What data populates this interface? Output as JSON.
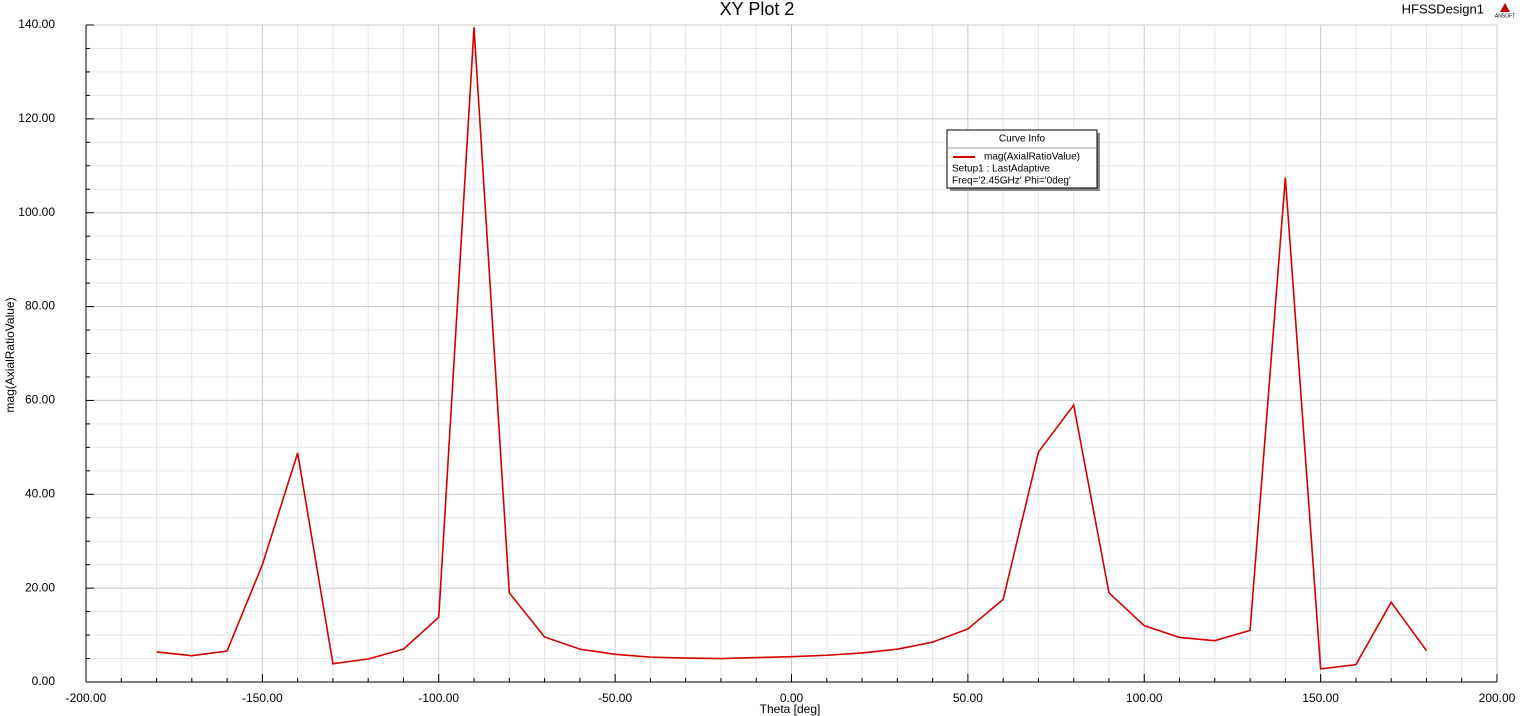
{
  "chart_data": {
    "type": "line",
    "title": "XY Plot 2",
    "design_name": "HFSSDesign1",
    "logo_text": "ANSOFT",
    "x_label": "Theta [deg]",
    "y_label": "mag(AxialRatioValue)",
    "x": [
      -180,
      -170,
      -160,
      -150,
      -140,
      -130,
      -120,
      -110,
      -100,
      -90,
      -80,
      -70,
      -60,
      -50,
      -40,
      -30,
      -20,
      -10,
      0,
      10,
      20,
      30,
      40,
      50,
      60,
      70,
      80,
      90,
      100,
      110,
      120,
      130,
      140,
      150,
      160,
      170,
      180
    ],
    "series": [
      {
        "name": "mag(AxialRatioValue)",
        "color": "#d40000",
        "values": [
          6.4,
          5.6,
          6.6,
          25,
          48.8,
          3.9,
          4.9,
          7.0,
          13.8,
          139.5,
          19,
          9.6,
          7.0,
          5.9,
          5.3,
          5.1,
          5.0,
          5.2,
          5.4,
          5.7,
          6.2,
          7.0,
          8.5,
          11.3,
          17.6,
          49,
          59,
          19,
          12,
          9.5,
          8.8,
          11,
          107.5,
          2.8,
          3.7,
          17,
          6.7
        ]
      }
    ],
    "legend_title": "Curve Info",
    "legend_details": [
      "Setup1 : LastAdaptive",
      "Freq='2.45GHz' Phi='0deg'"
    ],
    "xlim": [
      -200,
      200
    ],
    "ylim": [
      0,
      140
    ],
    "xticks": [
      {
        "value": -200,
        "label": "-200.00"
      },
      {
        "value": -150,
        "label": "-150.00"
      },
      {
        "value": -100,
        "label": "-100.00"
      },
      {
        "value": -50,
        "label": "-50.00"
      },
      {
        "value": 0,
        "label": "0.00"
      },
      {
        "value": 50,
        "label": "50.00"
      },
      {
        "value": 100,
        "label": "100.00"
      },
      {
        "value": 150,
        "label": "150.00"
      },
      {
        "value": 200,
        "label": "200.00"
      }
    ],
    "yticks": [
      {
        "value": 0,
        "label": "0.00"
      },
      {
        "value": 20,
        "label": "20.00"
      },
      {
        "value": 40,
        "label": "40.00"
      },
      {
        "value": 60,
        "label": "60.00"
      },
      {
        "value": 80,
        "label": "80.00"
      },
      {
        "value": 100,
        "label": "100.00"
      },
      {
        "value": 120,
        "label": "120.00"
      },
      {
        "value": 140,
        "label": "140.00"
      }
    ],
    "grid": true,
    "x_minor_divisions": 5,
    "y_minor_divisions": 4
  }
}
